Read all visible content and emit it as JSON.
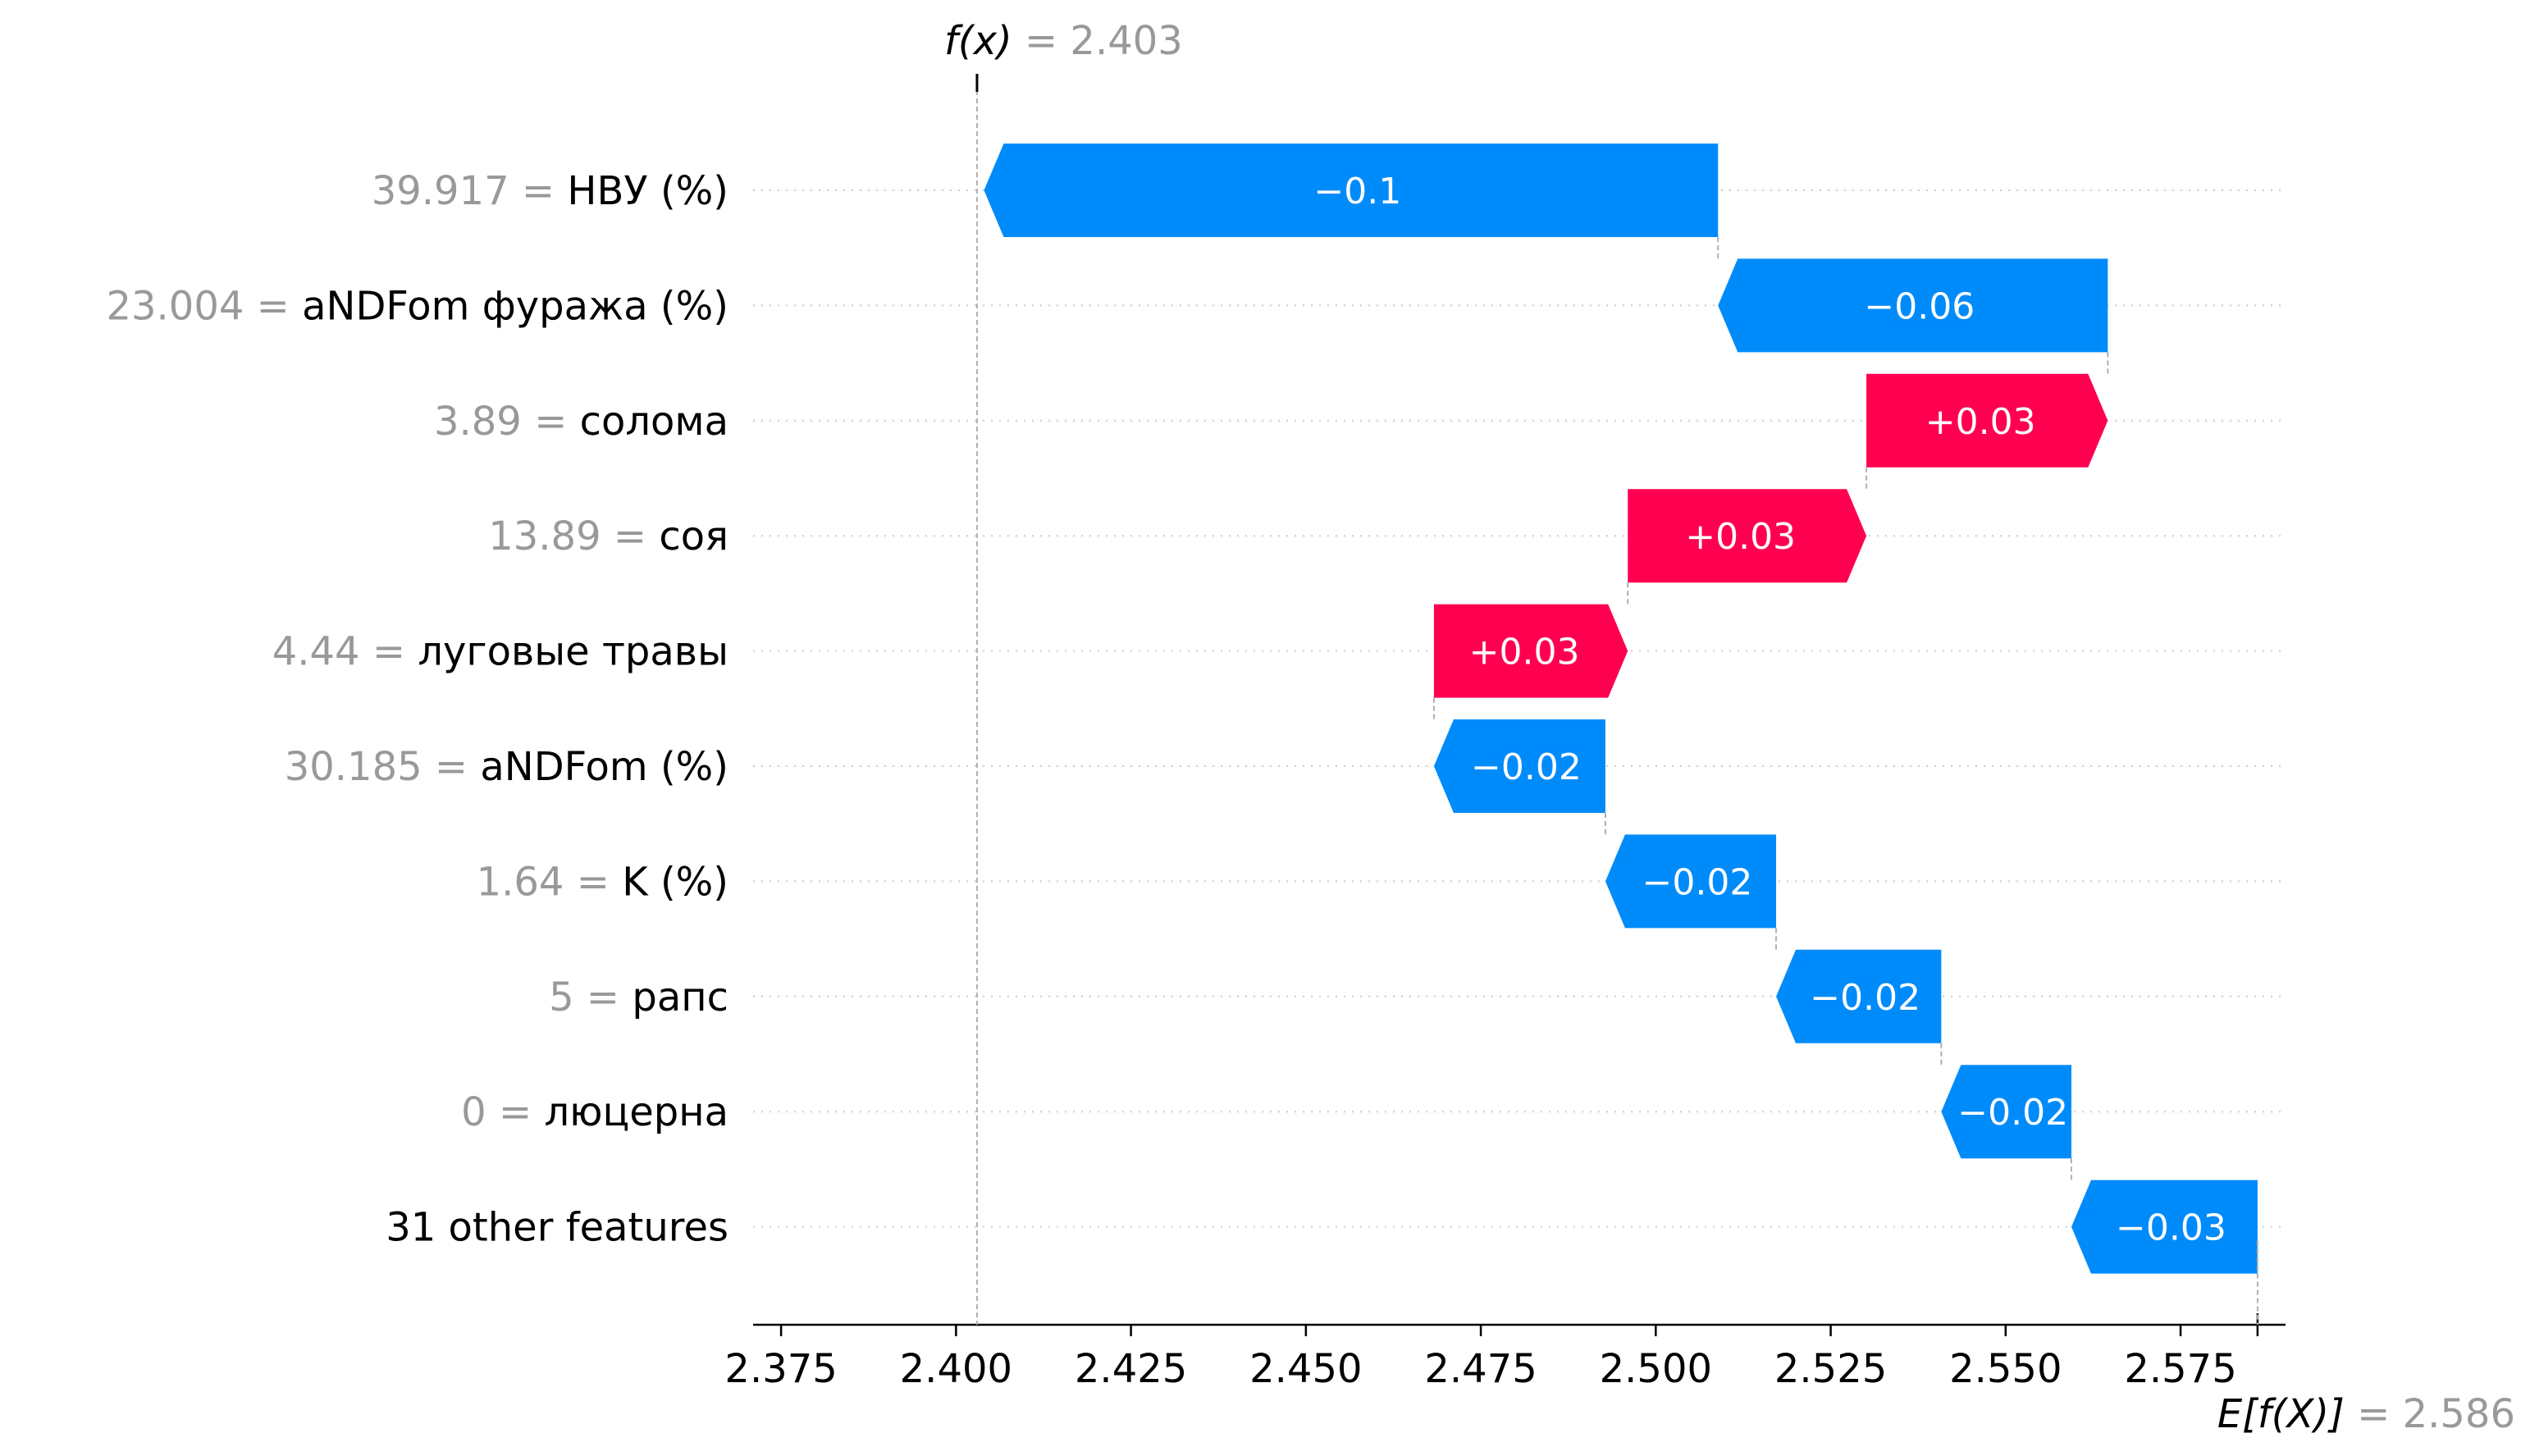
{
  "chart_data": {
    "type": "waterfall",
    "fx": {
      "label": "f(x)",
      "value": 2.403,
      "value_text": "= 2.403"
    },
    "base": {
      "label": "E[f(X)]",
      "value": 2.586,
      "value_text": "= 2.586"
    },
    "xlim": [
      2.371,
      2.59
    ],
    "xticks": [
      2.375,
      2.4,
      2.425,
      2.45,
      2.475,
      2.5,
      2.525,
      2.55,
      2.575
    ],
    "xtick_labels": [
      "2.375",
      "2.400",
      "2.425",
      "2.450",
      "2.475",
      "2.500",
      "2.525",
      "2.550",
      "2.575"
    ],
    "features": [
      {
        "value": "39.917 =",
        "name": "НВУ (%)",
        "contribution": -0.1049,
        "label": "−0.1"
      },
      {
        "value": "23.004 =",
        "name": "aNDFom фуража (%)",
        "contribution": -0.0557,
        "label": "−0.06"
      },
      {
        "value": "3.89 =",
        "name": "солома",
        "contribution": 0.0345,
        "label": "+0.03"
      },
      {
        "value": "13.89 =",
        "name": "соя",
        "contribution": 0.0341,
        "label": "+0.03"
      },
      {
        "value": "4.44 =",
        "name": "луговые травы",
        "contribution": 0.0277,
        "label": "+0.03"
      },
      {
        "value": "30.185 =",
        "name": "aNDFom (%)",
        "contribution": -0.0245,
        "label": "−0.02"
      },
      {
        "value": "1.64 =",
        "name": "K (%)",
        "contribution": -0.0244,
        "label": "−0.02"
      },
      {
        "value": "5 =",
        "name": "рапс",
        "contribution": -0.0236,
        "label": "−0.02"
      },
      {
        "value": "0 =",
        "name": "люцерна",
        "contribution": -0.0186,
        "label": "−0.02"
      },
      {
        "value": "",
        "name": "31 other features",
        "contribution": -0.0266,
        "label": "−0.03"
      }
    ],
    "colors": {
      "positive": "#ff0051",
      "negative": "#008bfb",
      "muted": "#999999",
      "axis": "#000000"
    }
  }
}
